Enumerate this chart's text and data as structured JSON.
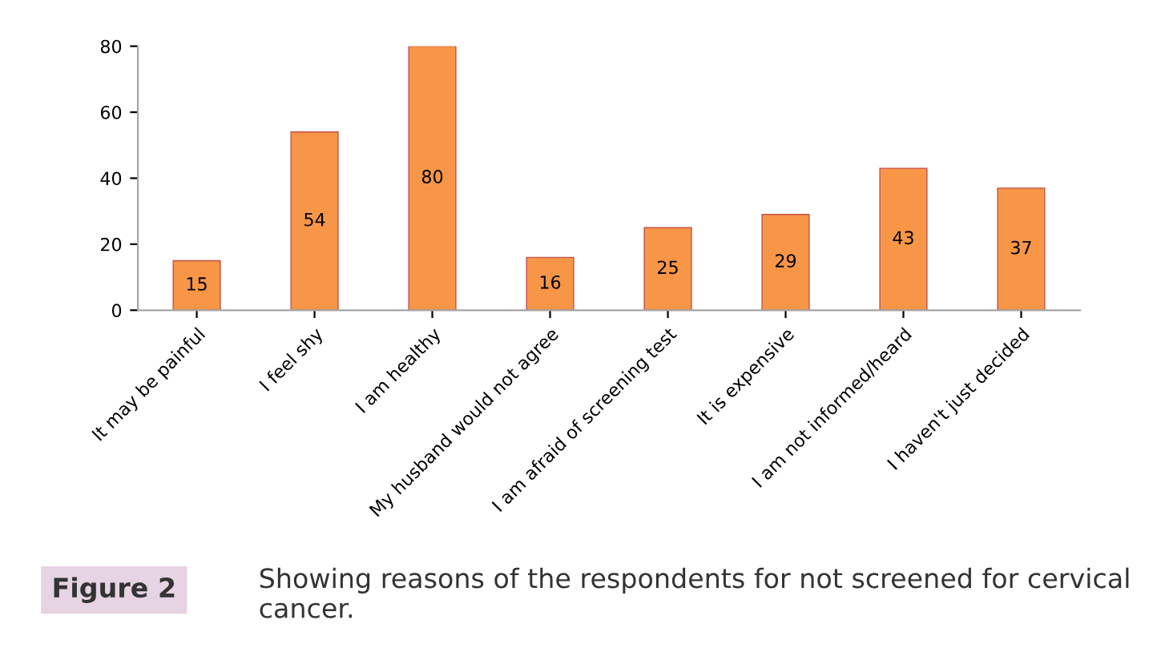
{
  "chart_data": {
    "type": "bar",
    "categories": [
      "It may be painful",
      "I feel shy",
      "I am healthy",
      "My husband would not agree",
      "I am afraid of screening test",
      "It is expensive",
      "I am not informed/heard",
      "I haven't just decided"
    ],
    "values": [
      15,
      54,
      80,
      16,
      25,
      29,
      43,
      37
    ],
    "color": "#f79646",
    "ylim": [
      0,
      80
    ],
    "yticks": [
      0,
      20,
      40,
      60,
      80
    ],
    "data_labels": true,
    "grid": false,
    "annotations": [
      "Figure 2",
      "Showing reasons of the respondents for not screened for cervical cancer."
    ]
  }
}
